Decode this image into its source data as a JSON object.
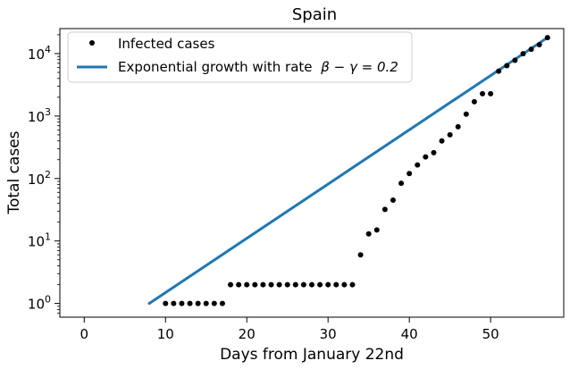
{
  "chart_data": {
    "type": "scatter",
    "title": "Spain",
    "xlabel": "Days from January 22nd",
    "ylabel": "Total cases",
    "xlim": [
      -3,
      59
    ],
    "ylim_log10": [
      -0.22,
      4.4
    ],
    "y_scale": "log",
    "x_ticks": [
      0,
      10,
      20,
      30,
      40,
      50
    ],
    "y_ticks": [
      {
        "exp": 0,
        "base": "10",
        "power": "0"
      },
      {
        "exp": 1,
        "base": "10",
        "power": "1"
      },
      {
        "exp": 2,
        "base": "10",
        "power": "2"
      },
      {
        "exp": 3,
        "base": "10",
        "power": "3"
      },
      {
        "exp": 4,
        "base": "10",
        "power": "4"
      }
    ],
    "legend_position": "top-left",
    "series": [
      {
        "name": "Infected cases",
        "kind": "points",
        "color": "#000000",
        "x": [
          10,
          11,
          12,
          13,
          14,
          15,
          16,
          17,
          18,
          19,
          20,
          21,
          22,
          23,
          24,
          25,
          26,
          27,
          28,
          29,
          30,
          31,
          32,
          33,
          34,
          35,
          36,
          37,
          38,
          39,
          40,
          41,
          42,
          43,
          44,
          45,
          46,
          47,
          48,
          49,
          50,
          51,
          52,
          53,
          54,
          55,
          56,
          57
        ],
        "y": [
          1,
          1,
          1,
          1,
          1,
          1,
          1,
          1,
          2,
          2,
          2,
          2,
          2,
          2,
          2,
          2,
          2,
          2,
          2,
          2,
          2,
          2,
          2,
          2,
          6,
          13,
          15,
          32,
          45,
          84,
          120,
          165,
          222,
          259,
          400,
          500,
          673,
          1073,
          1695,
          2277,
          2277,
          5232,
          6391,
          7798,
          9942,
          11748,
          13910,
          17963
        ]
      },
      {
        "name": "Exponential growth with rate",
        "legend_math": "β − γ = 0.2",
        "kind": "line",
        "color": "#1f77b4",
        "x": [
          8,
          57
        ],
        "y": [
          1,
          18033
        ]
      }
    ]
  }
}
